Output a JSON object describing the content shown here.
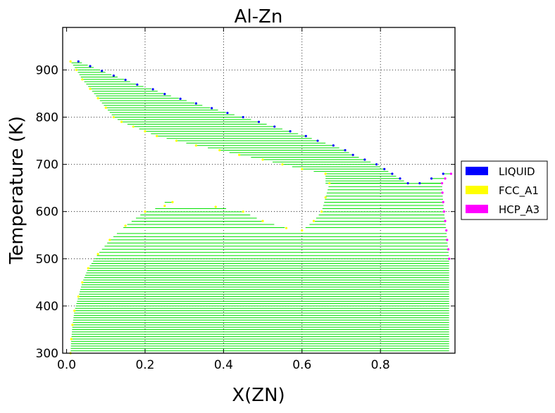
{
  "chart_data": {
    "type": "scatter",
    "title": "Al-Zn",
    "xlabel": "X(ZN)",
    "ylabel": "Temperature (K)",
    "xlim": [
      -0.01,
      0.99
    ],
    "ylim": [
      300,
      990
    ],
    "xticks": [
      0.0,
      0.2,
      0.4,
      0.6,
      0.8
    ],
    "yticks": [
      300,
      400,
      500,
      600,
      700,
      800,
      900
    ],
    "x_tick_labels": [
      "0.0",
      "0.2",
      "0.4",
      "0.6",
      "0.8"
    ],
    "y_tick_labels": [
      "300",
      "400",
      "500",
      "600",
      "700",
      "800",
      "900"
    ],
    "grid": true,
    "legend_position": "right",
    "tie_line_color": "#00e000",
    "series": [
      {
        "name": "LIQUID",
        "color": "#0000ff",
        "points": [
          [
            0.03,
            918
          ],
          [
            0.06,
            908
          ],
          [
            0.09,
            898
          ],
          [
            0.12,
            888
          ],
          [
            0.15,
            879
          ],
          [
            0.18,
            869
          ],
          [
            0.22,
            859
          ],
          [
            0.25,
            849
          ],
          [
            0.29,
            839
          ],
          [
            0.33,
            829
          ],
          [
            0.37,
            819
          ],
          [
            0.41,
            809
          ],
          [
            0.45,
            800
          ],
          [
            0.49,
            790
          ],
          [
            0.53,
            780
          ],
          [
            0.57,
            770
          ],
          [
            0.61,
            760
          ],
          [
            0.64,
            750
          ],
          [
            0.68,
            740
          ],
          [
            0.71,
            730
          ],
          [
            0.73,
            720
          ],
          [
            0.76,
            710
          ],
          [
            0.79,
            700
          ],
          [
            0.81,
            690
          ],
          [
            0.83,
            680
          ],
          [
            0.85,
            670
          ],
          [
            0.87,
            660
          ],
          [
            0.9,
            660
          ],
          [
            0.93,
            670
          ],
          [
            0.96,
            680
          ]
        ]
      },
      {
        "name": "FCC_A1",
        "color": "#ffff00",
        "points": [
          [
            0.01,
            300
          ],
          [
            0.012,
            330
          ],
          [
            0.015,
            360
          ],
          [
            0.02,
            390
          ],
          [
            0.03,
            420
          ],
          [
            0.04,
            450
          ],
          [
            0.055,
            480
          ],
          [
            0.08,
            510
          ],
          [
            0.11,
            540
          ],
          [
            0.15,
            570
          ],
          [
            0.2,
            600
          ],
          [
            0.25,
            612
          ],
          [
            0.27,
            620
          ],
          [
            0.38,
            610
          ],
          [
            0.45,
            600
          ],
          [
            0.5,
            580
          ],
          [
            0.56,
            565
          ],
          [
            0.6,
            560
          ],
          [
            0.63,
            580
          ],
          [
            0.65,
            600
          ],
          [
            0.66,
            630
          ],
          [
            0.67,
            660
          ],
          [
            0.66,
            680
          ],
          [
            0.6,
            690
          ],
          [
            0.55,
            700
          ],
          [
            0.5,
            710
          ],
          [
            0.44,
            720
          ],
          [
            0.39,
            730
          ],
          [
            0.33,
            740
          ],
          [
            0.28,
            750
          ],
          [
            0.23,
            760
          ],
          [
            0.2,
            770
          ],
          [
            0.17,
            780
          ],
          [
            0.14,
            790
          ],
          [
            0.12,
            800
          ],
          [
            0.1,
            820
          ],
          [
            0.08,
            840
          ],
          [
            0.06,
            860
          ],
          [
            0.04,
            880
          ],
          [
            0.025,
            900
          ],
          [
            0.01,
            918
          ]
        ]
      },
      {
        "name": "HCP_A3",
        "color": "#ff00ff",
        "points": [
          [
            0.975,
            500
          ],
          [
            0.973,
            520
          ],
          [
            0.97,
            540
          ],
          [
            0.968,
            560
          ],
          [
            0.965,
            580
          ],
          [
            0.962,
            600
          ],
          [
            0.96,
            620
          ],
          [
            0.958,
            640
          ],
          [
            0.957,
            660
          ],
          [
            0.965,
            670
          ],
          [
            0.98,
            680
          ]
        ]
      }
    ]
  }
}
